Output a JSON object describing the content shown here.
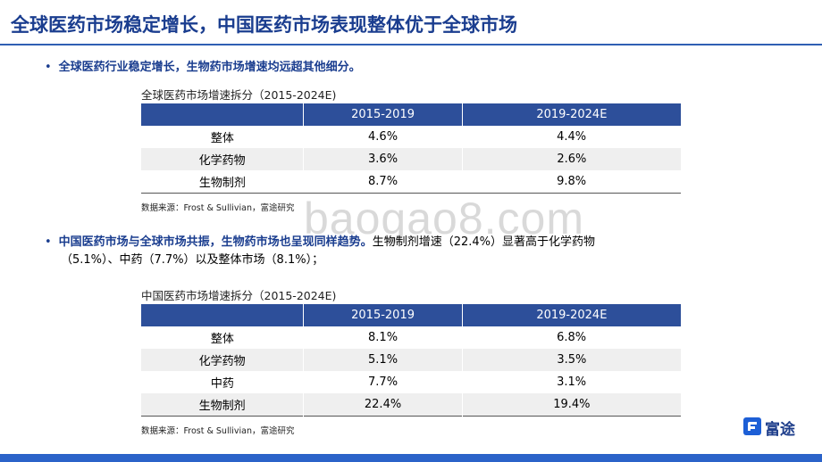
{
  "header": {
    "title": "全球医药市场稳定增长，中国医药市场表现整体优于全球市场"
  },
  "bullets": {
    "first": {
      "dot": "•",
      "highlight": "全球医药行业稳定增长，生物药市场增速均远超其他细分。"
    },
    "second": {
      "dot": "•",
      "highlight": "中国医药市场与全球市场共振，生物药市场也呈现同样趋势。",
      "text": "生物制剂增速（22.4%）显著高于化学药物",
      "text_line2": "（5.1%）、中药（7.7%）以及整体市场（8.1%）；"
    }
  },
  "global_table": {
    "caption": "全球医药市场增速拆分（2015-2024E)",
    "headers": [
      "",
      "2015-2019",
      "2019-2024E"
    ],
    "rows": [
      [
        "整体",
        "4.6%",
        "4.4%"
      ],
      [
        "化学药物",
        "3.6%",
        "2.6%"
      ],
      [
        "生物制剂",
        "8.7%",
        "9.8%"
      ]
    ],
    "source": "数据来源：Frost & Sullivian，富途研究"
  },
  "china_table": {
    "caption": "中国医药市场增速拆分（2015-2024E)",
    "headers": [
      "",
      "2015-2019",
      "2019-2024E"
    ],
    "rows": [
      [
        "整体",
        "8.1%",
        "6.8%"
      ],
      [
        "化学药物",
        "5.1%",
        "3.5%"
      ],
      [
        "中药",
        "7.7%",
        "3.1%"
      ],
      [
        "生物制剂",
        "22.4%",
        "19.4%"
      ]
    ],
    "source": "数据来源：Frost & Sullivian，富途研究"
  },
  "watermark": "baogao8.com",
  "logo": {
    "text": "富途",
    "icon": "futu-logo-icon"
  },
  "colors": {
    "accent": "#1a3d8f",
    "table_header": "#2d4f9a",
    "footer": "#2b63c9"
  }
}
